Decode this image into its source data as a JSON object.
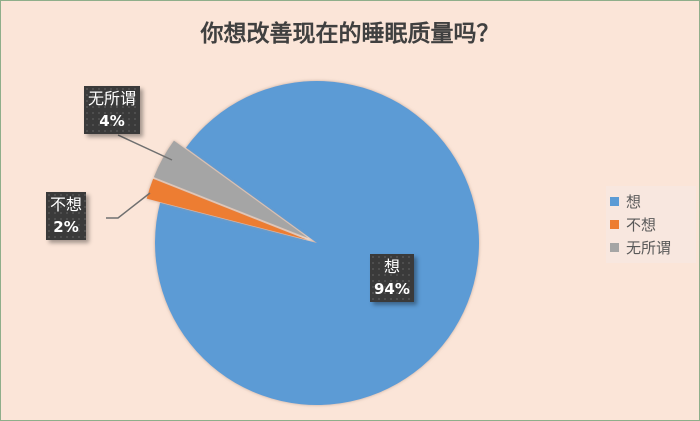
{
  "chart_data": {
    "type": "pie",
    "title": "你想改善现在的睡眠质量吗？",
    "categories": [
      "想",
      "不想",
      "无所谓"
    ],
    "values": [
      94,
      2,
      4
    ],
    "data_labels": [
      "94%",
      "2%",
      "4%"
    ],
    "colors": [
      "#5b9bd5",
      "#ed7d31",
      "#a5a5a5"
    ],
    "legend_position": "right"
  }
}
